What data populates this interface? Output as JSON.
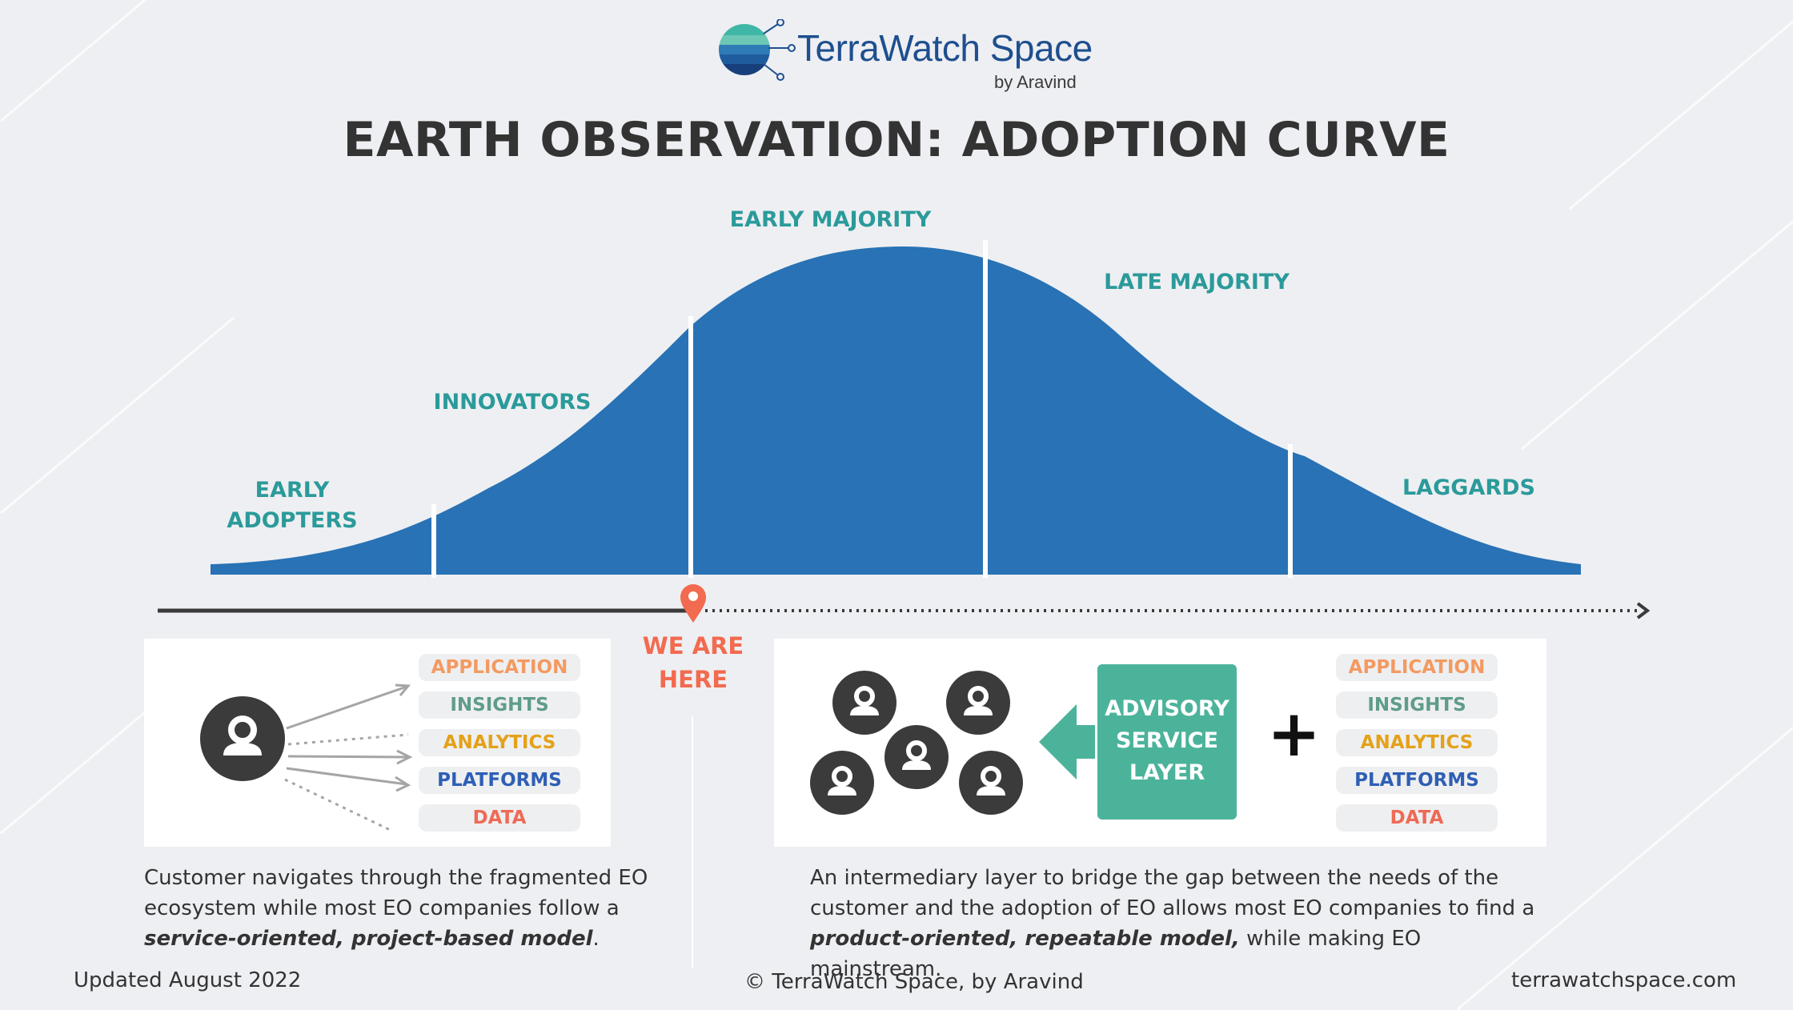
{
  "logo": {
    "name": "TerraWatch Space",
    "byline": "by Aravind"
  },
  "title": "EARTH OBSERVATION: ADOPTION CURVE",
  "curve": {
    "segments": [
      "EARLY ADOPTERS",
      "INNOVATORS",
      "EARLY MAJORITY",
      "LATE MAJORITY",
      "LAGGARDS"
    ],
    "segment_lines": [
      "EARLY",
      "ADOPTERS"
    ],
    "colors": {
      "curve": "#2872b5",
      "label": "#2b9a9a"
    }
  },
  "marker": {
    "line1": "WE ARE",
    "line2": "HERE",
    "color": "#f26a4f"
  },
  "stack": [
    "APPLICATION",
    "INSIGHTS",
    "ANALYTICS",
    "PLATFORMS",
    "DATA"
  ],
  "advisory": {
    "line1": "ADVISORY",
    "line2": "SERVICE",
    "line3": "LAYER",
    "plus": "+"
  },
  "left_desc": {
    "line1": "Customer navigates through the fragmented EO",
    "line2": "ecosystem while most EO companies follow a",
    "emph": "service-oriented, project-based model",
    "tail": "."
  },
  "right_desc": {
    "line1": "An intermediary layer to bridge the gap between the needs of the",
    "line2": "customer and the adoption of EO allows most EO companies to find a",
    "emph": "product-oriented, repeatable model,",
    "tail": " while making EO mainstream."
  },
  "footer": {
    "updated": "Updated August 2022",
    "copyright": "© TerraWatch Space, by Aravind",
    "site": "terrawatchspace.com"
  }
}
